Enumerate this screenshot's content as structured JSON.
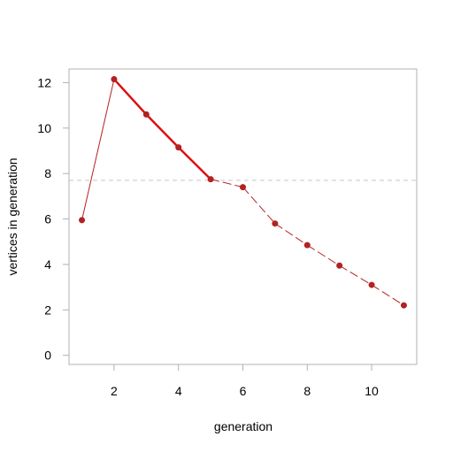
{
  "chart_data": {
    "type": "line",
    "title": "",
    "xlabel": "generation",
    "ylabel": "vertices in generation",
    "xlim": [
      0.6,
      11.4
    ],
    "ylim": [
      -0.4,
      12.6
    ],
    "x_ticks": [
      2,
      4,
      6,
      8,
      10
    ],
    "y_ticks": [
      0,
      2,
      4,
      6,
      8,
      10,
      12
    ],
    "grid": false,
    "reference_line": {
      "y": 7.7,
      "style": "dashed",
      "color": "#c8c8c8"
    },
    "series": [
      {
        "x": [
          1,
          2,
          3,
          4,
          5,
          6,
          7,
          8,
          9,
          10,
          11
        ],
        "y": [
          5.95,
          12.15,
          10.6,
          9.15,
          7.75,
          7.4,
          5.8,
          4.85,
          3.95,
          3.1,
          2.2
        ],
        "color": "#b22222",
        "highlight_color": "#dd1111",
        "highlight_range": [
          2,
          5
        ]
      }
    ]
  }
}
